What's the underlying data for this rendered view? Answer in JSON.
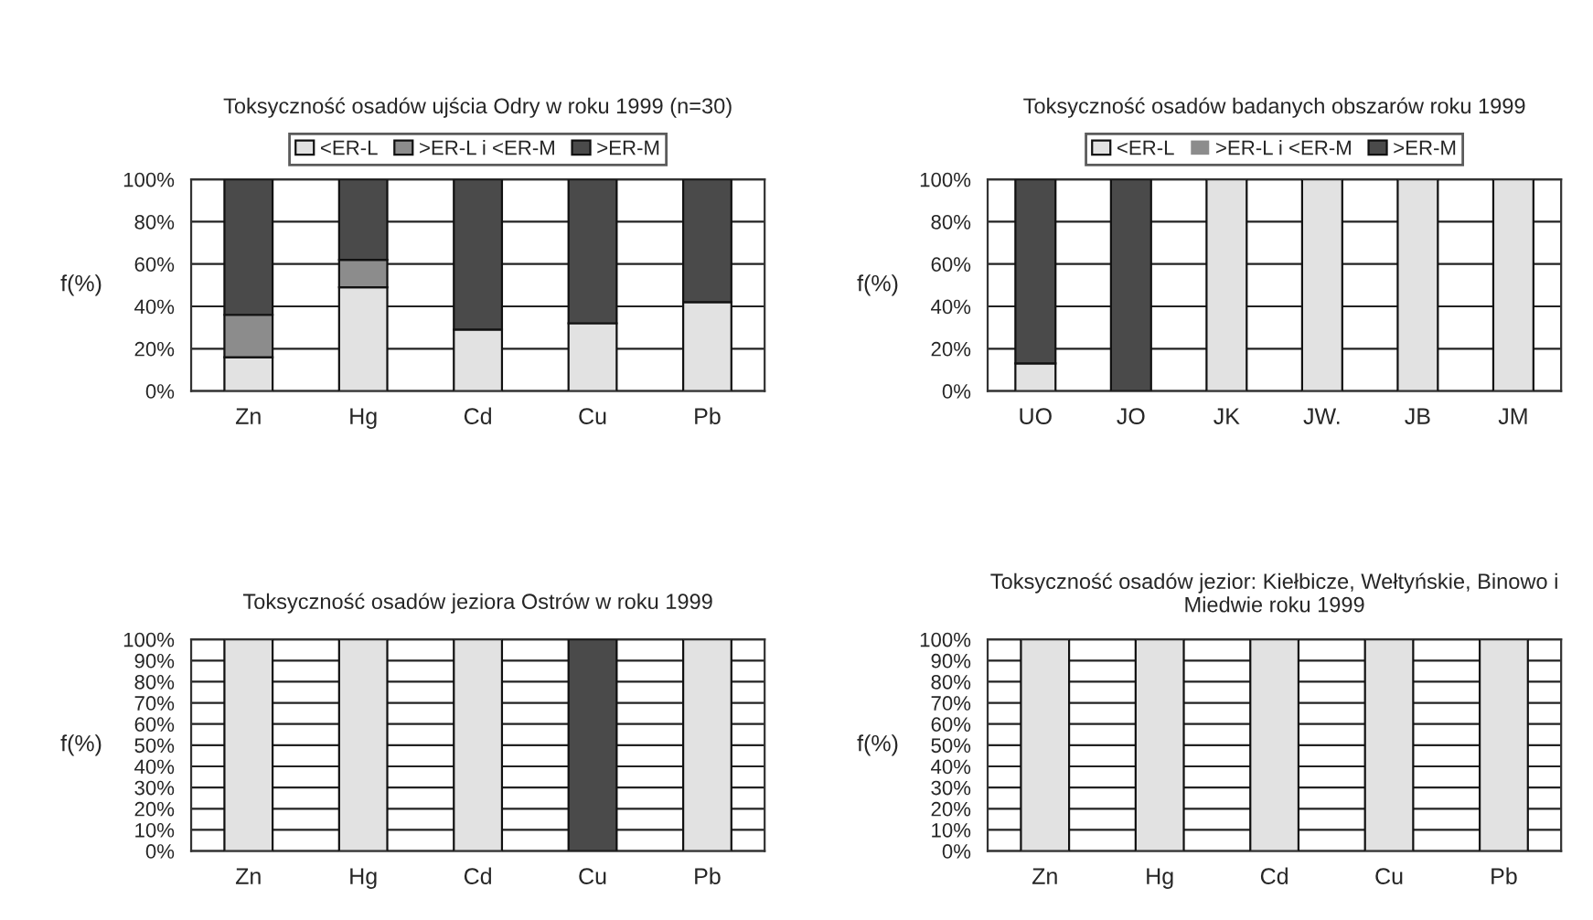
{
  "chart_data": [
    {
      "type": "bar",
      "title": "Toksyczność osadów ujścia Odry w roku 1999 (n=30)",
      "ylabel": "f(%)",
      "stacked": true,
      "categories": [
        "Zn",
        "Hg",
        "Cd",
        "Cu",
        "Pb"
      ],
      "series": [
        {
          "name": "<ER-L",
          "color": "#e2e2e2",
          "values": [
            16,
            49,
            29,
            32,
            42
          ]
        },
        {
          "name": ">ER-L i <ER-M",
          "color": "#8c8c8c",
          "values": [
            20,
            13,
            0,
            0,
            0
          ]
        },
        {
          "name": ">ER-M",
          "color": "#4a4a4a",
          "values": [
            64,
            38,
            71,
            68,
            58
          ]
        }
      ],
      "ylim": [
        0,
        100
      ],
      "yticks": [
        {
          "value": 0,
          "label": "0%"
        },
        {
          "value": 20,
          "label": "20%"
        },
        {
          "value": 40,
          "label": "40%"
        },
        {
          "value": 60,
          "label": "60%"
        },
        {
          "value": 80,
          "label": "80%"
        },
        {
          "value": 100,
          "label": "100%"
        }
      ],
      "grid": "y",
      "legend": "top"
    },
    {
      "type": "bar",
      "title": "Toksyczność osadów badanych obszarów roku 1999",
      "ylabel": "f(%)",
      "stacked": true,
      "categories": [
        "UO",
        "JO",
        "JK",
        "JW.",
        "JB",
        "JM"
      ],
      "series": [
        {
          "name": "<ER-L",
          "color": "#e2e2e2",
          "values": [
            13,
            0,
            100,
            100,
            100,
            100
          ]
        },
        {
          "name": ">ER-L i <ER-M",
          "color": "#8c8c8c",
          "values": [
            0,
            0,
            0,
            0,
            0,
            0
          ]
        },
        {
          "name": ">ER-M",
          "color": "#4a4a4a",
          "values": [
            87,
            100,
            0,
            0,
            0,
            0
          ]
        }
      ],
      "ylim": [
        0,
        100
      ],
      "yticks": [
        {
          "value": 0,
          "label": "0%"
        },
        {
          "value": 20,
          "label": "20%"
        },
        {
          "value": 40,
          "label": "40%"
        },
        {
          "value": 60,
          "label": "60%"
        },
        {
          "value": 80,
          "label": "80%"
        },
        {
          "value": 100,
          "label": "100%"
        }
      ],
      "grid": "y",
      "legend": "top"
    },
    {
      "type": "bar",
      "title": "Toksyczność osadów jeziora Ostrów w roku 1999",
      "ylabel": "f(%)",
      "stacked": true,
      "categories": [
        "Zn",
        "Hg",
        "Cd",
        "Cu",
        "Pb"
      ],
      "series": [
        {
          "color": "#e2e2e2",
          "values": [
            100,
            100,
            100,
            0,
            100
          ]
        },
        {
          "color": "#4a4a4a",
          "values": [
            0,
            0,
            0,
            100,
            0
          ]
        }
      ],
      "ylim": [
        0,
        100
      ],
      "yticks": [
        {
          "value": 0,
          "label": "0%"
        },
        {
          "value": 10,
          "label": "10%"
        },
        {
          "value": 20,
          "label": "20%"
        },
        {
          "value": 30,
          "label": "30%"
        },
        {
          "value": 40,
          "label": "40%"
        },
        {
          "value": 50,
          "label": "50%"
        },
        {
          "value": 60,
          "label": "60%"
        },
        {
          "value": 70,
          "label": "70%"
        },
        {
          "value": 80,
          "label": "80%"
        },
        {
          "value": 90,
          "label": "90%"
        },
        {
          "value": 100,
          "label": "100%"
        }
      ],
      "grid": "y"
    },
    {
      "type": "bar",
      "title": "Toksyczność osadów jezior: Kiełbicze, Wełtyńskie, Binowo i Miedwie roku 1999",
      "ylabel": "f(%)",
      "stacked": true,
      "categories": [
        "Zn",
        "Hg",
        "Cd",
        "Cu",
        "Pb"
      ],
      "series": [
        {
          "color": "#e2e2e2",
          "values": [
            100,
            100,
            100,
            100,
            100
          ]
        }
      ],
      "ylim": [
        0,
        100
      ],
      "yticks": [
        {
          "value": 0,
          "label": "0%"
        },
        {
          "value": 10,
          "label": "10%"
        },
        {
          "value": 20,
          "label": "20%"
        },
        {
          "value": 30,
          "label": "30%"
        },
        {
          "value": 40,
          "label": "40%"
        },
        {
          "value": 50,
          "label": "50%"
        },
        {
          "value": 60,
          "label": "60%"
        },
        {
          "value": 70,
          "label": "70%"
        },
        {
          "value": 80,
          "label": "80%"
        },
        {
          "value": 90,
          "label": "90%"
        },
        {
          "value": 100,
          "label": "100%"
        }
      ],
      "grid": "y"
    }
  ]
}
